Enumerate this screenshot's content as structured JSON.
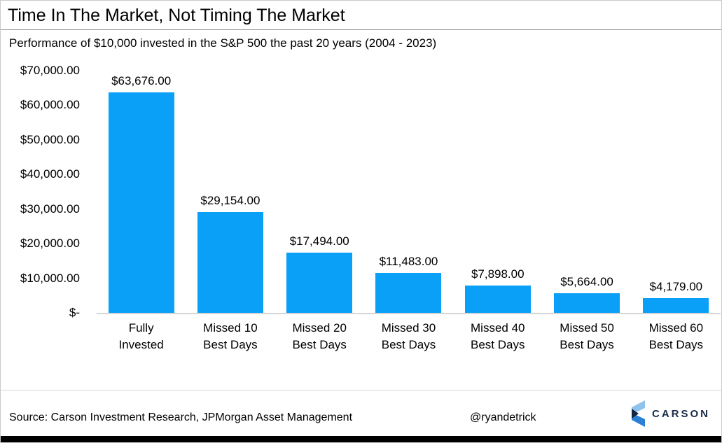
{
  "header": {
    "subtitle": "Performance of $10,000 invested in the S&P 500 the past 20 years (2004 - 2023)"
  },
  "chart_data": {
    "type": "bar",
    "title": "Time In The Market, Not Timing The Market",
    "subtitle": "Performance of $10,000 invested in the S&P 500 the past 20 years (2004 - 2023)",
    "categories": [
      "Fully Invested",
      "Missed 10 Best Days",
      "Missed 20 Best Days",
      "Missed 30 Best Days",
      "Missed 40 Best Days",
      "Missed 50 Best Days",
      "Missed 60 Best Days"
    ],
    "category_lines": [
      [
        "Fully",
        "Invested"
      ],
      [
        "Missed 10",
        "Best Days"
      ],
      [
        "Missed 20",
        "Best Days"
      ],
      [
        "Missed 30",
        "Best Days"
      ],
      [
        "Missed 40",
        "Best Days"
      ],
      [
        "Missed 50",
        "Best Days"
      ],
      [
        "Missed 60",
        "Best Days"
      ]
    ],
    "values": [
      63676,
      29154,
      17494,
      11483,
      7898,
      5664,
      4179
    ],
    "value_labels": [
      "$63,676.00",
      "$29,154.00",
      "$17,494.00",
      "$11,483.00",
      "$7,898.00",
      "$5,664.00",
      "$4,179.00"
    ],
    "y_ticks": [
      "$70,000.00",
      "$60,000.00",
      "$50,000.00",
      "$40,000.00",
      "$30,000.00",
      "$20,000.00",
      "$10,000.00",
      "$-"
    ],
    "ylim": [
      0,
      70000
    ],
    "xlabel": "",
    "ylabel": "",
    "grid": false,
    "legend": false,
    "bar_color": "#0aa0f8",
    "axis_line_color": "#d6d6d6"
  },
  "footer": {
    "source": "Source: Carson Investment Research, JPMorgan Asset Management",
    "handle": "@ryandetrick",
    "logo_text": "CARSON",
    "logo_colors": {
      "light_blue": "#8fc3ec",
      "mid_blue": "#2b80d5",
      "dark_navy": "#16243e"
    }
  }
}
